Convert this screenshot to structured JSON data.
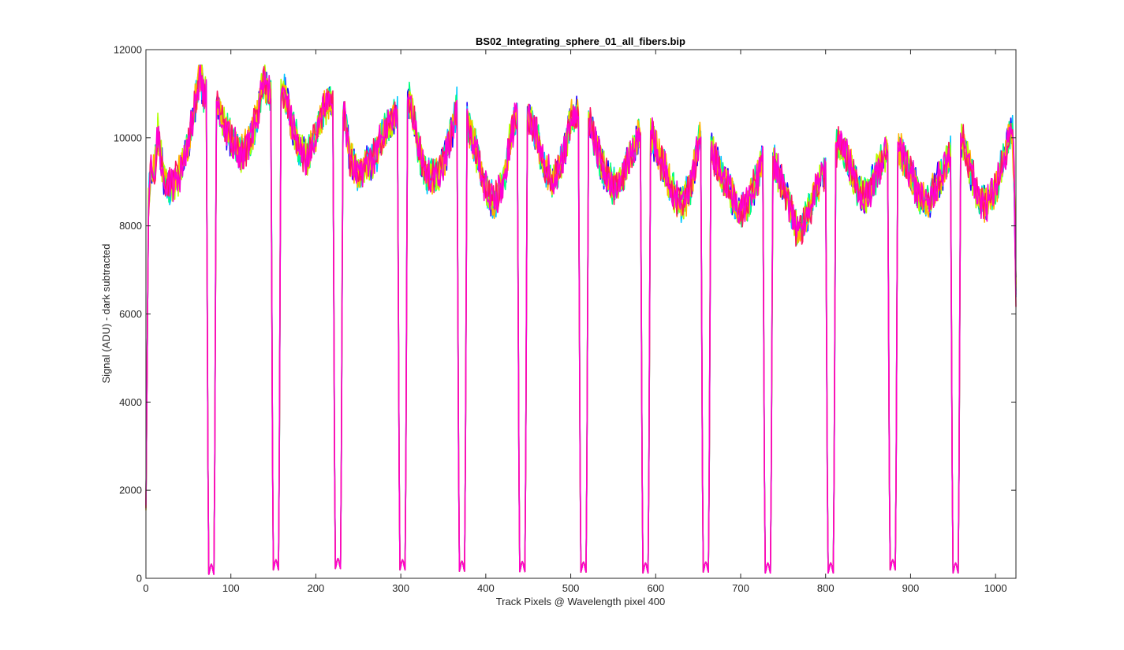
{
  "chart_data": {
    "type": "line",
    "title": "BS02_Integrating_sphere_01_all_fibers.bip",
    "xlabel": "Track Pixels @ Wavelength pixel 400",
    "ylabel": "Signal (ADU) - dark subtracted",
    "xlim": [
      0,
      1024
    ],
    "ylim": [
      0,
      12000
    ],
    "xticks": [
      0,
      100,
      200,
      300,
      400,
      500,
      600,
      700,
      800,
      900,
      1000
    ],
    "yticks": [
      0,
      2000,
      4000,
      6000,
      8000,
      10000,
      12000
    ],
    "grid": false,
    "box": true,
    "line_colors": [
      "#1f00ff",
      "#00c8ff",
      "#00ff80",
      "#b4ff00",
      "#ffb400",
      "#ff1464",
      "#ff00d2"
    ],
    "gaps": [
      {
        "center": 77,
        "min": 200
      },
      {
        "center": 153,
        "min": 300
      },
      {
        "center": 226,
        "min": 330
      },
      {
        "center": 302,
        "min": 300
      },
      {
        "center": 372,
        "min": 270
      },
      {
        "center": 443,
        "min": 260
      },
      {
        "center": 515,
        "min": 250
      },
      {
        "center": 588,
        "min": 230
      },
      {
        "center": 659,
        "min": 250
      },
      {
        "center": 732,
        "min": 230
      },
      {
        "center": 806,
        "min": 230
      },
      {
        "center": 879,
        "min": 300
      },
      {
        "center": 953,
        "min": 230
      }
    ],
    "envelope": {
      "x": [
        0,
        3,
        6,
        10,
        14,
        18,
        22,
        30,
        40,
        50,
        58,
        62,
        64,
        66,
        68,
        72,
        86,
        92,
        100,
        110,
        120,
        130,
        136,
        140,
        144,
        164,
        170,
        180,
        190,
        200,
        210,
        216,
        220,
        234,
        240,
        250,
        260,
        270,
        280,
        290,
        296,
        306,
        312,
        320,
        330,
        340,
        350,
        360,
        366,
        380,
        390,
        400,
        410,
        420,
        430,
        436,
        450,
        460,
        470,
        480,
        490,
        500,
        508,
        522,
        530,
        540,
        550,
        560,
        570,
        580,
        596,
        610,
        620,
        630,
        640,
        652,
        668,
        680,
        690,
        700,
        710,
        720,
        726,
        740,
        750,
        760,
        768,
        780,
        790,
        800,
        816,
        830,
        840,
        850,
        860,
        872,
        888,
        900,
        910,
        920,
        930,
        946,
        962,
        980,
        990,
        1000,
        1010,
        1016,
        1020,
        1022,
        1024
      ],
      "y": [
        1600,
        8500,
        9300,
        9200,
        10100,
        9500,
        9000,
        8900,
        9200,
        9800,
        10800,
        11300,
        11400,
        11200,
        11000,
        11000,
        10700,
        10300,
        10000,
        9600,
        9800,
        10400,
        11100,
        11300,
        11000,
        11000,
        10400,
        9800,
        9500,
        10100,
        10700,
        10800,
        10800,
        10500,
        9600,
        9100,
        9400,
        9600,
        10100,
        10400,
        10500,
        10900,
        10800,
        9800,
        9200,
        9100,
        9400,
        10100,
        10700,
        10300,
        9600,
        8800,
        8500,
        8900,
        10100,
        10500,
        10500,
        10000,
        9300,
        9000,
        9500,
        10400,
        10500,
        10300,
        9800,
        9200,
        8900,
        9100,
        9600,
        10000,
        10000,
        9300,
        8800,
        8500,
        8800,
        10000,
        9600,
        9100,
        8700,
        8300,
        8600,
        9100,
        9500,
        9400,
        8900,
        8300,
        7800,
        8300,
        8900,
        9300,
        9900,
        9300,
        8700,
        8700,
        9200,
        9700,
        9700,
        9200,
        8700,
        8500,
        8900,
        9600,
        9900,
        8600,
        8500,
        8900,
        9500,
        10000,
        10100,
        9000,
        6600
      ]
    },
    "series": [
      {
        "color": "#1f00ff"
      },
      {
        "color": "#00c8ff"
      },
      {
        "color": "#00ff80"
      },
      {
        "color": "#b4ff00"
      },
      {
        "color": "#ffb400"
      },
      {
        "color": "#ff1464"
      },
      {
        "color": "#ff00d2"
      }
    ]
  }
}
